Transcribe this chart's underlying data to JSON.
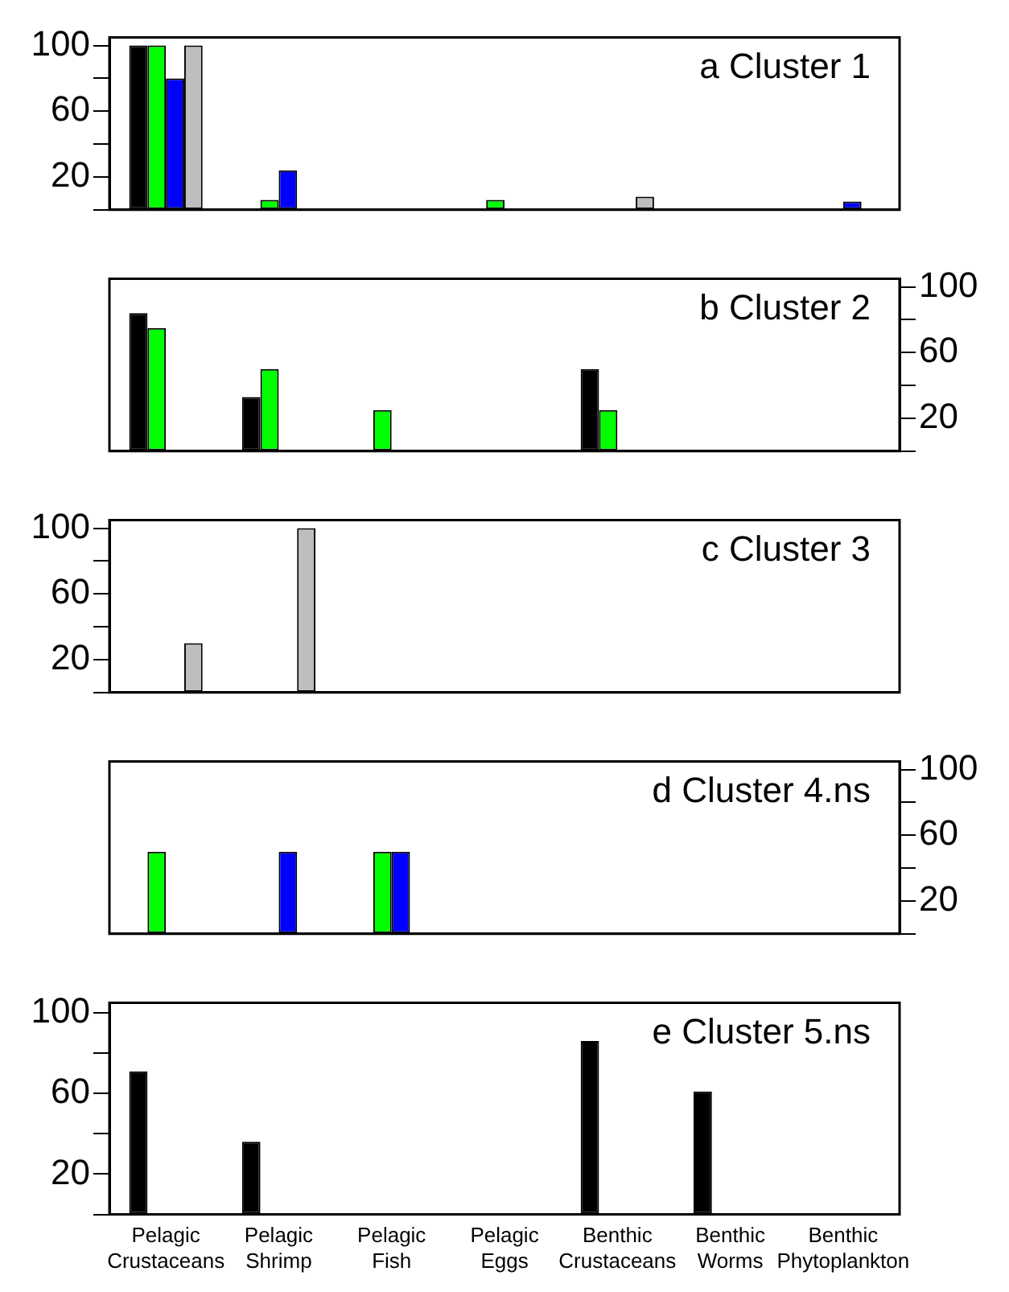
{
  "chart_data": [
    {
      "type": "bar",
      "title": "a Cluster 1",
      "categories": [
        null,
        null,
        null,
        null,
        null,
        null,
        null
      ],
      "series": [
        {
          "color": "#000000",
          "values": [
            100,
            0,
            0,
            0,
            0,
            0,
            0
          ]
        },
        {
          "color": "#00ff00",
          "values": [
            100,
            6,
            0,
            6,
            0,
            0,
            0
          ]
        },
        {
          "color": "#0000ff",
          "values": [
            80,
            24,
            0,
            0,
            0,
            0,
            5
          ]
        },
        {
          "color": "#bebebe",
          "values": [
            100,
            0,
            0,
            0,
            8,
            0,
            0
          ]
        }
      ],
      "ylim": [
        0,
        105
      ],
      "yticks": [
        {
          "value": 0,
          "label": null
        },
        20,
        {
          "value": 40,
          "label": null
        },
        60,
        {
          "value": 80,
          "label": null
        },
        100
      ],
      "grid": false,
      "legend": false
    },
    {
      "type": "bar",
      "title": "b Cluster 2",
      "categories": [
        null,
        null,
        null,
        null,
        null,
        null,
        null
      ],
      "series": [
        {
          "color": "#000000",
          "axis": "y2",
          "values": [
            84,
            33,
            0,
            0,
            50,
            0,
            0
          ]
        },
        {
          "color": "#00ff00",
          "axis": "y2",
          "values": [
            75,
            50,
            25,
            0,
            25,
            0,
            0
          ]
        },
        {
          "color": "#0000ff",
          "axis": "y2",
          "values": [
            0,
            0,
            0,
            0,
            0,
            0,
            0
          ]
        },
        {
          "color": "#bebebe",
          "axis": "y2",
          "values": [
            0,
            0,
            0,
            0,
            0,
            0,
            0
          ]
        }
      ],
      "y2lim": [
        0,
        105
      ],
      "y2ticks": [
        {
          "value": 0,
          "label": null
        },
        20,
        {
          "value": 40,
          "label": null
        },
        60,
        {
          "value": 80,
          "label": null
        },
        100
      ],
      "grid": false,
      "legend": false
    },
    {
      "type": "bar",
      "title": "c Cluster 3",
      "categories": [
        null,
        null,
        null,
        null,
        null,
        null,
        null
      ],
      "series": [
        {
          "color": "#000000",
          "values": [
            0,
            0,
            0,
            0,
            0,
            0,
            0
          ]
        },
        {
          "color": "#00ff00",
          "values": [
            0,
            0,
            0,
            0,
            0,
            0,
            0
          ]
        },
        {
          "color": "#0000ff",
          "values": [
            0,
            0,
            0,
            0,
            0,
            0,
            0
          ]
        },
        {
          "color": "#bebebe",
          "values": [
            30,
            100,
            0,
            0,
            0,
            0,
            0
          ]
        }
      ],
      "ylim": [
        0,
        105
      ],
      "yticks": [
        {
          "value": 0,
          "label": null
        },
        20,
        {
          "value": 40,
          "label": null
        },
        60,
        {
          "value": 80,
          "label": null
        },
        100
      ],
      "grid": false,
      "legend": false
    },
    {
      "type": "bar",
      "title": "d Cluster 4.ns",
      "categories": [
        null,
        null,
        null,
        null,
        null,
        null,
        null
      ],
      "series": [
        {
          "color": "#000000",
          "axis": "y2",
          "values": [
            0,
            0,
            0,
            0,
            0,
            0,
            0
          ]
        },
        {
          "color": "#00ff00",
          "axis": "y2",
          "values": [
            50,
            0,
            50,
            0,
            0,
            0,
            0
          ]
        },
        {
          "color": "#0000ff",
          "axis": "y2",
          "values": [
            0,
            50,
            50,
            0,
            0,
            0,
            0
          ]
        },
        {
          "color": "#bebebe",
          "axis": "y2",
          "values": [
            0,
            0,
            0,
            0,
            0,
            0,
            0
          ]
        }
      ],
      "y2lim": [
        0,
        105
      ],
      "y2ticks": [
        {
          "value": 0,
          "label": null
        },
        20,
        {
          "value": 40,
          "label": null
        },
        60,
        {
          "value": 80,
          "label": null
        },
        100
      ],
      "grid": false,
      "legend": false
    },
    {
      "type": "bar",
      "title": "e Cluster 5.ns",
      "categories": [
        "Pelagic Crustaceans",
        "Pelagic Shrimp",
        "Pelagic Fish",
        "Pelagic Eggs",
        "Benthic Crustaceans",
        "Benthic Worms",
        "Benthic Phytoplankton"
      ],
      "series": [
        {
          "color": "#000000",
          "values": [
            71,
            36,
            0,
            0,
            86,
            61,
            0
          ]
        },
        {
          "color": "#00ff00",
          "values": [
            0,
            0,
            0,
            0,
            0,
            0,
            0
          ]
        },
        {
          "color": "#0000ff",
          "values": [
            0,
            0,
            0,
            0,
            0,
            0,
            0
          ]
        },
        {
          "color": "#bebebe",
          "values": [
            0,
            0,
            0,
            0,
            0,
            0,
            0
          ]
        }
      ],
      "ylim": [
        0,
        105
      ],
      "yticks": [
        {
          "value": 0,
          "label": null
        },
        20,
        {
          "value": 40,
          "label": null
        },
        60,
        {
          "value": 80,
          "label": null
        },
        100
      ],
      "grid": false,
      "legend": false
    }
  ]
}
